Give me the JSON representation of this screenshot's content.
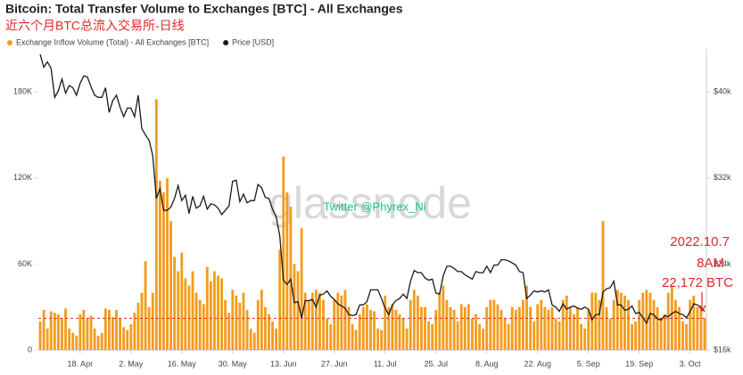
{
  "chart_data": {
    "type": "bar",
    "title": "Bitcoin: Total Transfer Volume to Exchanges [BTC] - All Exchanges",
    "subtitle": "近六个月BTC总流入交易所-日线",
    "watermark": "glassnode",
    "credit": "Twitter @Phyrex_Ni",
    "annotations": [
      "2022.10.7",
      "8AM",
      "22,172 BTC"
    ],
    "reference_line": 22172,
    "reference_color": "#e0292b",
    "categories": [
      null,
      null,
      null,
      null,
      null,
      null,
      null,
      null,
      null,
      null,
      null,
      "18. Apr",
      null,
      null,
      null,
      null,
      null,
      null,
      null,
      null,
      null,
      null,
      null,
      null,
      null,
      "2. May",
      null,
      null,
      null,
      null,
      null,
      null,
      null,
      null,
      null,
      null,
      null,
      null,
      null,
      "16. May",
      null,
      null,
      null,
      null,
      null,
      null,
      null,
      null,
      null,
      null,
      null,
      null,
      null,
      "30. May",
      null,
      null,
      null,
      null,
      null,
      null,
      null,
      null,
      null,
      null,
      null,
      null,
      null,
      "13. Jun",
      null,
      null,
      null,
      null,
      null,
      null,
      null,
      null,
      null,
      null,
      null,
      null,
      null,
      "27. Jun",
      null,
      null,
      null,
      null,
      null,
      null,
      null,
      null,
      null,
      null,
      null,
      null,
      null,
      "11. Jul",
      null,
      null,
      null,
      null,
      null,
      null,
      null,
      null,
      null,
      null,
      null,
      null,
      null,
      "25. Jul",
      null,
      null,
      null,
      null,
      null,
      null,
      null,
      null,
      null,
      null,
      null,
      null,
      null,
      "8. Aug",
      null,
      null,
      null,
      null,
      null,
      null,
      null,
      null,
      null,
      null,
      null,
      null,
      null,
      "22. Aug",
      null,
      null,
      null,
      null,
      null,
      null,
      null,
      null,
      null,
      null,
      null,
      null,
      null,
      "5. Sep",
      null,
      null,
      null,
      null,
      null,
      null,
      null,
      null,
      null,
      null,
      null,
      null,
      null,
      "19. Sep",
      null,
      null,
      null,
      null,
      null,
      null,
      null,
      null,
      null,
      null,
      null,
      null,
      null,
      "3. Oct",
      null,
      null,
      null,
      null
    ],
    "series": [
      {
        "name": "Exchange Inflow Volume (Total) - All Exchanges [BTC]",
        "type": "bar",
        "color": "#f39c1f",
        "values": [
          20000,
          28000,
          15000,
          27000,
          26000,
          25000,
          22000,
          29000,
          15000,
          12000,
          10000,
          25000,
          28000,
          22000,
          24000,
          15000,
          10000,
          12000,
          29000,
          28000,
          23000,
          28000,
          22000,
          16000,
          14000,
          18000,
          26000,
          33000,
          40000,
          62000,
          30000,
          40000,
          175000,
          118000,
          110000,
          120000,
          90000,
          65000,
          55000,
          68000,
          50000,
          45000,
          55000,
          40000,
          35000,
          32000,
          58000,
          48000,
          55000,
          52000,
          50000,
          35000,
          26000,
          42000,
          38000,
          33000,
          40000,
          28000,
          15000,
          12000,
          35000,
          42000,
          30000,
          25000,
          20000,
          15000,
          70000,
          135000,
          110000,
          100000,
          60000,
          55000,
          85000,
          40000,
          35000,
          40000,
          42000,
          40000,
          35000,
          22000,
          18000,
          35000,
          40000,
          38000,
          42000,
          30000,
          18000,
          14000,
          25000,
          30000,
          32000,
          28000,
          27000,
          15000,
          14000,
          38000,
          30000,
          32000,
          28000,
          25000,
          22000,
          15000,
          35000,
          42000,
          38000,
          30000,
          30000,
          20000,
          18000,
          28000,
          40000,
          45000,
          35000,
          30000,
          28000,
          20000,
          32000,
          30000,
          32000,
          22000,
          25000,
          18000,
          15000,
          30000,
          35000,
          35000,
          32000,
          28000,
          22000,
          18000,
          30000,
          28000,
          30000,
          35000,
          45000,
          30000,
          20000,
          32000,
          35000,
          30000,
          28000,
          30000,
          22000,
          20000,
          35000,
          38000,
          30000,
          25000,
          30000,
          18000,
          15000,
          28000,
          40000,
          40000,
          35000,
          90000,
          30000,
          22000,
          35000,
          42000,
          40000,
          38000,
          35000,
          18000,
          20000,
          35000,
          40000,
          42000,
          40000,
          35000,
          30000,
          22000,
          25000,
          40000,
          45000,
          35000,
          30000,
          20000,
          18000,
          35000,
          38000,
          30000,
          28000,
          22172
        ]
      },
      {
        "name": "Price [USD]",
        "type": "line",
        "axis": "y2",
        "color": "#1a1a1a",
        "values": [
          43500,
          42300,
          42800,
          42200,
          39500,
          40100,
          41200,
          39900,
          40600,
          40400,
          39700,
          40800,
          41500,
          41400,
          40500,
          39700,
          39500,
          39500,
          40400,
          38100,
          39200,
          39700,
          38600,
          37700,
          38500,
          38500,
          37700,
          39700,
          36600,
          36000,
          35500,
          34100,
          30100,
          31000,
          29000,
          29000,
          29300,
          30100,
          31300,
          29900,
          30400,
          28700,
          30300,
          29200,
          29400,
          30300,
          29100,
          29600,
          29500,
          29200,
          28600,
          29000,
          29400,
          31700,
          31800,
          29800,
          30500,
          29700,
          29900,
          29900,
          31400,
          31100,
          30200,
          30100,
          29100,
          28400,
          26600,
          22500,
          22100,
          22600,
          20400,
          20500,
          19000,
          20600,
          20600,
          20700,
          20000,
          21100,
          21200,
          21500,
          21000,
          20700,
          20300,
          20100,
          19900,
          19300,
          19200,
          19300,
          20200,
          20200,
          20500,
          21600,
          21600,
          21600,
          20800,
          19900,
          19300,
          20200,
          20600,
          20800,
          21200,
          20800,
          22400,
          23400,
          23200,
          23200,
          22700,
          22500,
          22600,
          21300,
          21200,
          22900,
          23800,
          23800,
          23600,
          23300,
          23300,
          23000,
          22800,
          22600,
          23300,
          23200,
          23200,
          23800,
          23200,
          23900,
          23900,
          24400,
          24400,
          24300,
          24100,
          23900,
          23300,
          23200,
          20800,
          21100,
          21500,
          21400,
          21500,
          21400,
          21600,
          20200,
          20000,
          19600,
          20300,
          19800,
          20000,
          20100,
          19900,
          19800,
          20000,
          19800,
          18800,
          19300,
          19300,
          21400,
          21700,
          21800,
          22400,
          20200,
          20200,
          19700,
          19800,
          20100,
          19400,
          19500,
          19000,
          18500,
          19400,
          19300,
          18900,
          18800,
          19200,
          19100,
          19400,
          19600,
          19400,
          19300,
          19000,
          19600,
          20300,
          20200,
          20000,
          19600
        ]
      }
    ],
    "ylim": [
      0,
      210000
    ],
    "yticks": [
      0,
      {
        "value": 60000,
        "label": "60K"
      },
      {
        "value": 120000,
        "label": "120K"
      },
      {
        "value": 180000,
        "label": "180K"
      }
    ],
    "y2lim": [
      16000,
      44000
    ],
    "y2ticks": [
      {
        "value": 16000,
        "label": "$16k"
      },
      {
        "value": 24000,
        "label": "$24k"
      },
      {
        "value": 32000,
        "label": "$32k"
      },
      {
        "value": 40000,
        "label": "$40k"
      }
    ],
    "grid": false,
    "legend": "top-left"
  }
}
